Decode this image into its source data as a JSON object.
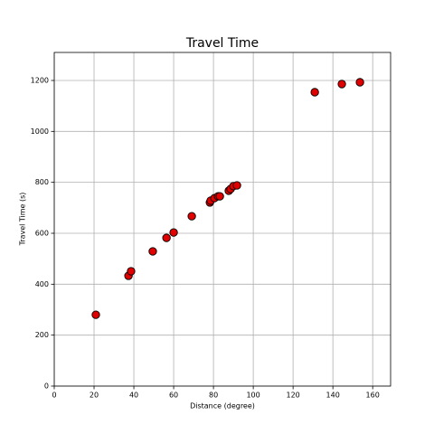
{
  "chart_data": {
    "type": "scatter",
    "title": "Travel Time",
    "x_label": "Distance (degree)",
    "y_label": "Travel Time (s)",
    "x": [
      20.9,
      37.3,
      38.6,
      49.5,
      56.4,
      60,
      69.1,
      78.2,
      78.6,
      80.5,
      82.3,
      83.2,
      87.7,
      88.6,
      90,
      91.8,
      130.9,
      144.5,
      153.6
    ],
    "series": [
      {
        "color": "#e00000",
        "edge_color": "#000000",
        "values": [
          280,
          433,
          451,
          529,
          582,
          603,
          667,
          721,
          728,
          738,
          745,
          745,
          767,
          774,
          785,
          788,
          1154,
          1186,
          1193
        ]
      }
    ],
    "xlim": [
      0,
      169
    ],
    "ylim": [
      0,
      1310
    ],
    "xticks": [
      0,
      20,
      40,
      60,
      80,
      100,
      120,
      140,
      160
    ],
    "yticks": [
      0,
      200,
      400,
      600,
      800,
      1000,
      1200
    ],
    "grid": true
  }
}
